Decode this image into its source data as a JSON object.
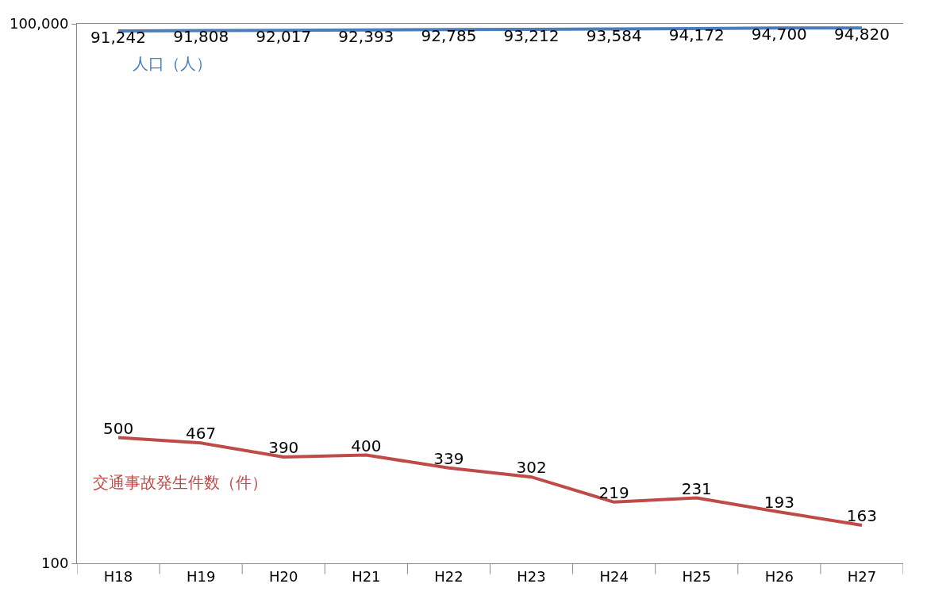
{
  "chart_data": {
    "type": "line",
    "categories": [
      "H18",
      "H19",
      "H20",
      "H21",
      "H22",
      "H23",
      "H24",
      "H25",
      "H26",
      "H27"
    ],
    "series": [
      {
        "name": "人口（人）",
        "color": "#4a7ebb",
        "values": [
          91242,
          91808,
          92017,
          92393,
          92785,
          93212,
          93584,
          94172,
          94700,
          94820
        ],
        "value_labels": [
          "91,242",
          "91,808",
          "92,017",
          "92,393",
          "92,785",
          "93,212",
          "93,584",
          "94,172",
          "94,700",
          "94,820"
        ]
      },
      {
        "name": "交通事故発生件数（件）",
        "color": "#be4b48",
        "values": [
          500,
          467,
          390,
          400,
          339,
          302,
          219,
          231,
          193,
          163
        ],
        "value_labels": [
          "500",
          "467",
          "390",
          "400",
          "339",
          "302",
          "219",
          "231",
          "193",
          "163"
        ]
      }
    ],
    "log": true,
    "ylim": [
      100,
      100000
    ],
    "yticks": [
      {
        "value": 100,
        "label": "100"
      },
      {
        "value": 100000,
        "label": "100,000"
      }
    ],
    "legend": false,
    "marker": "none",
    "line_style": "solid"
  }
}
